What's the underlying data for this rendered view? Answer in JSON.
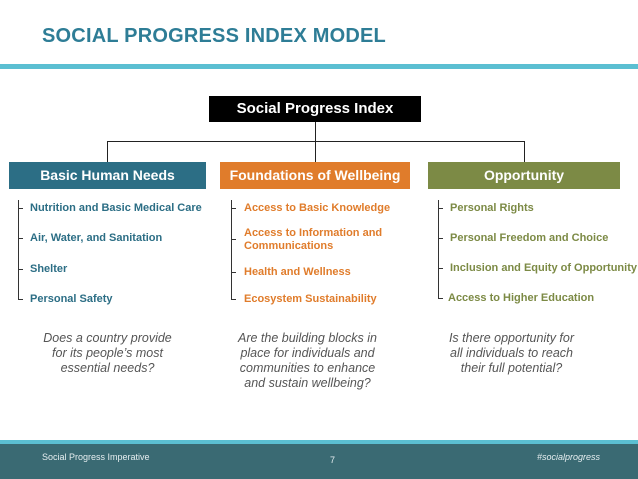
{
  "title": "SOCIAL PROGRESS INDEX MODEL",
  "root": "Social Progress Index",
  "pillars": [
    {
      "name": "Basic Human Needs",
      "color": "#2c6e85",
      "items": [
        "Nutrition and Basic Medical Care",
        "Air, Water, and Sanitation",
        "Shelter",
        "Personal Safety"
      ],
      "question": [
        "Does a country provide",
        "for its people’s most",
        "essential needs?"
      ]
    },
    {
      "name": "Foundations of Wellbeing",
      "color": "#e07c2b",
      "items": [
        "Access to Basic Knowledge",
        "Access to Information and",
        "Communications",
        "Health and Wellness",
        "Ecosystem Sustainability"
      ],
      "question": [
        "Are the building blocks in",
        "place for individuals and",
        "communities to enhance",
        "and sustain wellbeing?"
      ]
    },
    {
      "name": "Opportunity",
      "color": "#7c8a45",
      "items": [
        "Personal Rights",
        "Personal Freedom and Choice",
        "Inclusion and Equity of Opportunity",
        "Access to Higher Education"
      ],
      "question": [
        "Is there opportunity for",
        "all individuals to reach",
        "their full potential?"
      ]
    }
  ],
  "footer": {
    "left": "Social Progress Imperative",
    "page": "7",
    "right": "#socialprogress"
  },
  "colors": {
    "title": "#2e7d96",
    "accent_rule": "#5bbfd2",
    "footer_bg": "#3a6a73"
  }
}
